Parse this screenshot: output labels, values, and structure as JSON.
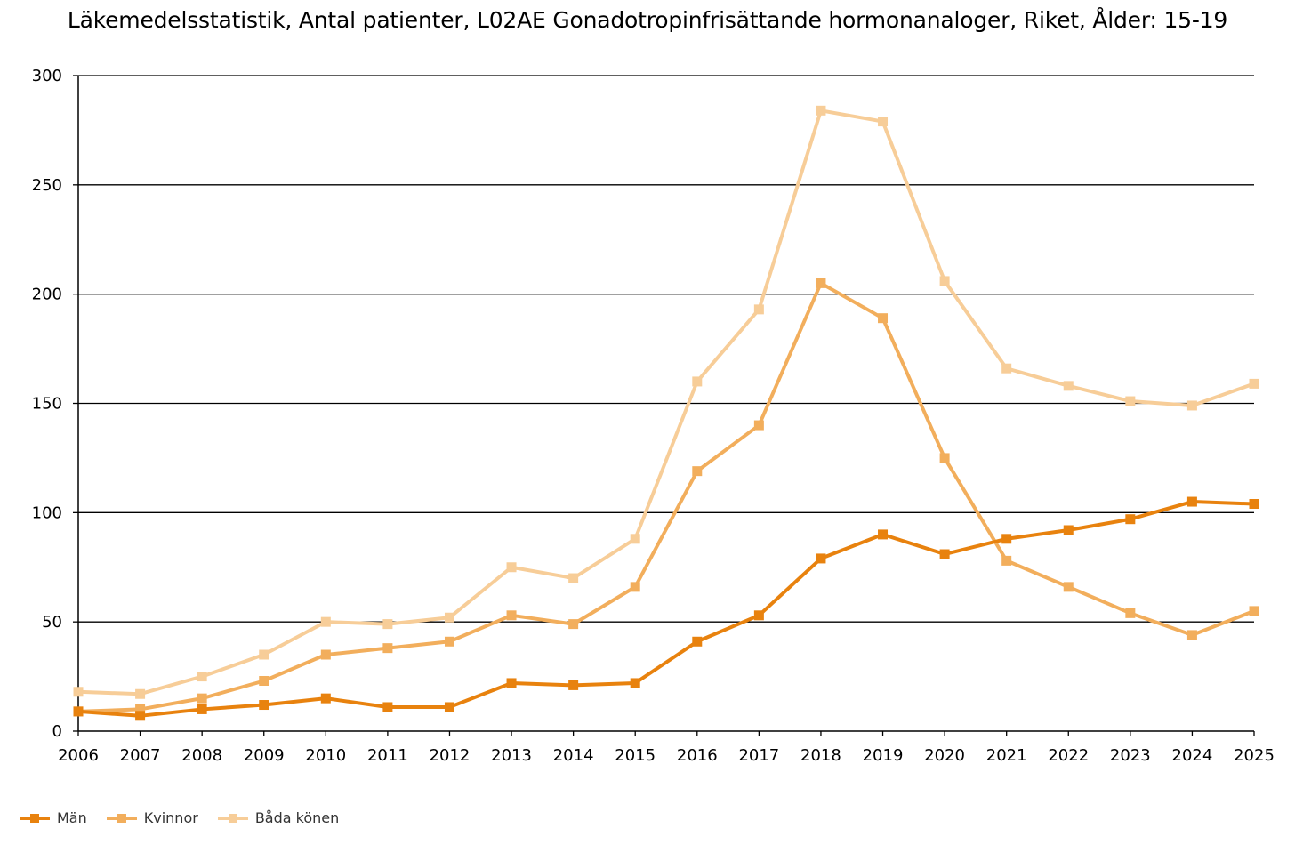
{
  "chart_data": {
    "type": "line",
    "title": "Läkemedelsstatistik, Antal patienter, L02AE Gonadotropinfrisättande hormonanaloger, Riket, Ålder: 15-19",
    "xlabel": "",
    "ylabel": "",
    "ylim": [
      0,
      300
    ],
    "yticks": [
      0,
      50,
      100,
      150,
      200,
      250,
      300
    ],
    "grid": true,
    "legend_position": "bottom-left",
    "categories": [
      "2006",
      "2007",
      "2008",
      "2009",
      "2010",
      "2011",
      "2012",
      "2013",
      "2014",
      "2015",
      "2016",
      "2017",
      "2018",
      "2019",
      "2020",
      "2021",
      "2022",
      "2023",
      "2024",
      "2025"
    ],
    "series": [
      {
        "name": "Män",
        "color": "#E8820E",
        "values": [
          9,
          7,
          10,
          12,
          15,
          11,
          11,
          22,
          21,
          22,
          41,
          53,
          79,
          90,
          81,
          88,
          92,
          97,
          105,
          104
        ]
      },
      {
        "name": "Kvinnor",
        "color": "#F2AE5C",
        "values": [
          9,
          10,
          15,
          23,
          35,
          38,
          41,
          53,
          49,
          66,
          119,
          140,
          205,
          189,
          125,
          78,
          66,
          54,
          44,
          55
        ]
      },
      {
        "name": "Båda könen",
        "color": "#F7CD98",
        "values": [
          18,
          17,
          25,
          35,
          50,
          49,
          52,
          75,
          70,
          88,
          160,
          193,
          284,
          279,
          206,
          166,
          158,
          151,
          149,
          159
        ]
      }
    ]
  }
}
